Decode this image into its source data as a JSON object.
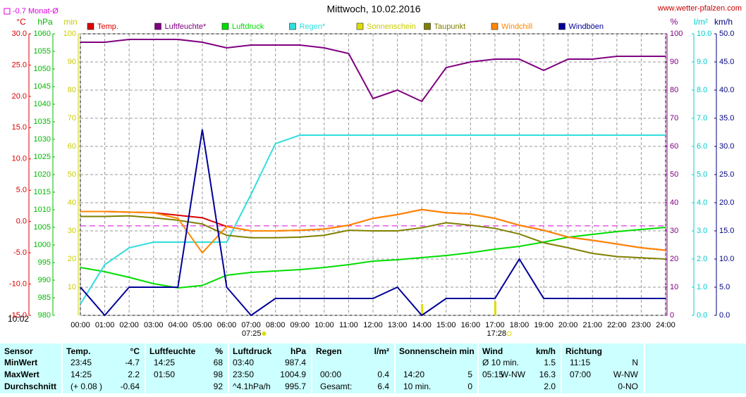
{
  "chart_data": {
    "type": "line",
    "title": "Mittwoch, 10.02.2016",
    "site": "www.wetter-pfalzen.com",
    "month_avg": {
      "label": "-0.7 Monat-Ø",
      "value": -0.7,
      "color": "#dd00dd"
    },
    "time_stamp": "10:02",
    "sunrise": "07:25",
    "sunset": "17:28",
    "grid": true,
    "categories": [
      "00:00",
      "01:00",
      "02:00",
      "03:00",
      "04:00",
      "05:00",
      "06:00",
      "07:00",
      "08:00",
      "09:00",
      "10:00",
      "11:00",
      "12:00",
      "13:00",
      "14:00",
      "15:00",
      "16:00",
      "17:00",
      "18:00",
      "19:00",
      "20:00",
      "21:00",
      "22:00",
      "23:00",
      "24:00"
    ],
    "axes": [
      {
        "label": "°C",
        "color": "#dd0000",
        "side": "left",
        "lim": [
          -15,
          30
        ],
        "ticks": [
          {
            "value": 30,
            "label": "30.0"
          },
          {
            "value": 25,
            "label": "25.0"
          },
          {
            "value": 20,
            "label": "20.0"
          },
          {
            "value": 15,
            "label": "15.0"
          },
          {
            "value": 10,
            "label": "10.0"
          },
          {
            "value": 5,
            "label": "5.0"
          },
          {
            "value": 0,
            "label": "0.0"
          },
          {
            "value": -5,
            "label": "-5.0"
          },
          {
            "value": -10,
            "label": "-10.0"
          },
          {
            "value": -15,
            "label": "-15.0"
          }
        ]
      },
      {
        "label": "hPa",
        "color": "#00bb00",
        "side": "left",
        "lim": [
          980,
          1060
        ],
        "ticks": [
          1060,
          1055,
          1050,
          1045,
          1040,
          1035,
          1030,
          1025,
          1020,
          1015,
          1010,
          1005,
          1000,
          995,
          990,
          985,
          980
        ]
      },
      {
        "label": "min",
        "color": "#cccc00",
        "side": "left",
        "lim": [
          0,
          100
        ],
        "ticks": [
          100,
          90,
          80,
          70,
          60,
          50,
          40,
          30,
          20,
          10
        ]
      },
      {
        "label": "%",
        "color": "#800080",
        "side": "right",
        "lim": [
          0,
          100
        ],
        "ticks": [
          100,
          90,
          80,
          70,
          60,
          50,
          40,
          30,
          20,
          10,
          0
        ]
      },
      {
        "label": "l/m²",
        "color": "#00cccc",
        "side": "right",
        "lim": [
          0,
          10
        ],
        "ticks": [
          {
            "value": 10,
            "label": "10.0"
          },
          {
            "value": 9,
            "label": "9.0"
          },
          {
            "value": 8,
            "label": "8.0"
          },
          {
            "value": 7,
            "label": "7.0"
          },
          {
            "value": 6,
            "label": "6.0"
          },
          {
            "value": 5,
            "label": "5.0"
          },
          {
            "value": 4,
            "label": "4.0"
          },
          {
            "value": 3,
            "label": "3.0"
          },
          {
            "value": 2,
            "label": "2.0"
          },
          {
            "value": 1,
            "label": "1.0"
          },
          {
            "value": 0,
            "label": "0.0"
          }
        ]
      },
      {
        "label": "km/h",
        "color": "#000080",
        "side": "right",
        "lim": [
          0,
          50
        ],
        "ticks": [
          {
            "value": 50,
            "label": "50.0"
          },
          {
            "value": 45,
            "label": "45.0"
          },
          {
            "value": 40,
            "label": "40.0"
          },
          {
            "value": 35,
            "label": "35.0"
          },
          {
            "value": 30,
            "label": "30.0"
          },
          {
            "value": 25,
            "label": "25.0"
          },
          {
            "value": 20,
            "label": "20.0"
          },
          {
            "value": 15,
            "label": "15.0"
          },
          {
            "value": 10,
            "label": "10.0"
          },
          {
            "value": 5,
            "label": "5.0"
          },
          {
            "value": 0,
            "label": "0.0"
          }
        ]
      }
    ],
    "series": [
      {
        "name": "Temp.",
        "color": "#dd0000",
        "axis": 0,
        "kind": "line",
        "values": [
          1.6,
          1.6,
          1.5,
          1.4,
          1.0,
          0.6,
          -0.8,
          -1.5,
          -1.5,
          -1.4,
          -1.2,
          -0.6,
          0.5,
          1.1,
          1.9,
          1.4,
          1.2,
          0.5,
          -0.6,
          -1.4,
          -2.5,
          -3.0,
          -3.6,
          -4.2,
          -4.6
        ]
      },
      {
        "name": "Luftfeuchte*",
        "color": "#800080",
        "axis": 3,
        "kind": "line",
        "values": [
          97,
          97,
          98,
          98,
          98,
          97,
          95,
          96,
          96,
          96,
          95,
          93,
          77,
          80,
          76,
          88,
          90,
          91,
          91,
          87,
          91,
          91,
          92,
          92,
          92
        ]
      },
      {
        "name": "Luftdruck",
        "color": "#00dd00",
        "axis": 1,
        "kind": "line",
        "values": [
          993.6,
          992.4,
          990.8,
          989.0,
          987.8,
          988.5,
          991.4,
          992.2,
          992.6,
          993.0,
          993.6,
          994.4,
          995.4,
          995.8,
          996.4,
          997.0,
          997.8,
          998.8,
          999.6,
          1000.8,
          1002.2,
          1003.0,
          1003.8,
          1004.4,
          1005.0
        ]
      },
      {
        "name": "Regen*",
        "color": "#33dddd",
        "axis": 4,
        "kind": "line",
        "values": [
          0.4,
          1.8,
          2.4,
          2.6,
          2.6,
          2.6,
          2.6,
          4.3,
          6.1,
          6.4,
          6.4,
          6.4,
          6.4,
          6.4,
          6.4,
          6.4,
          6.4,
          6.4,
          6.4,
          6.4,
          6.4,
          6.4,
          6.4,
          6.4,
          6.4
        ]
      },
      {
        "name": "Sonnenschein",
        "color": "#dddd00",
        "axis": 2,
        "kind": "bar",
        "values": [
          0,
          0,
          0,
          0,
          0,
          0,
          0,
          0,
          0,
          0,
          0,
          0,
          0,
          0,
          4,
          0,
          0,
          5,
          0,
          0,
          0,
          0,
          0,
          0,
          0
        ]
      },
      {
        "name": "Taupunkt",
        "color": "#808000",
        "axis": 0,
        "kind": "line",
        "values": [
          0.8,
          0.8,
          0.9,
          0.6,
          0.2,
          -0.4,
          -2.2,
          -2.6,
          -2.6,
          -2.5,
          -2.2,
          -1.4,
          -1.5,
          -1.5,
          -1.0,
          -0.2,
          -0.6,
          -1.1,
          -2.0,
          -3.4,
          -4.2,
          -5.1,
          -5.6,
          -5.8,
          -6.0
        ]
      },
      {
        "name": "Windchill",
        "color": "#ff8800",
        "axis": 0,
        "kind": "line",
        "values": [
          1.6,
          1.6,
          1.5,
          1.4,
          0.5,
          -5.0,
          -0.8,
          -1.5,
          -1.5,
          -1.4,
          -1.2,
          -0.6,
          0.5,
          1.1,
          1.9,
          1.4,
          1.2,
          0.5,
          -0.6,
          -1.4,
          -2.5,
          -3.0,
          -3.6,
          -4.2,
          -4.6
        ]
      },
      {
        "name": "Windböen",
        "color": "#000099",
        "axis": 5,
        "kind": "line",
        "values": [
          5,
          0,
          5,
          5,
          5,
          33,
          5,
          0,
          3,
          3,
          3,
          3,
          3,
          5,
          0,
          3,
          3,
          3,
          10,
          3,
          3,
          3,
          3,
          3,
          3
        ]
      }
    ]
  },
  "stats": {
    "header": [
      "Sensor",
      "Temp.",
      "°C",
      "Luftfeuchte",
      "%",
      "Luftdruck",
      "hPa",
      "Regen",
      "l/m²",
      "Sonnenschein min",
      null,
      "Wind",
      null,
      "km/h",
      "Richtung",
      null
    ],
    "rows": [
      [
        "MinWert",
        "23:45",
        "-4.7",
        "14:25",
        "68",
        "03:40",
        "987.4",
        null,
        null,
        null,
        null,
        "Ø 10 min.",
        null,
        "1.5",
        "11:15",
        "N"
      ],
      [
        "MaxWert",
        "14:25",
        "2.2",
        "01:50",
        "98",
        "23:50",
        "1004.9",
        "00:00",
        "0.4",
        "14:20",
        "5",
        "05:15",
        "W-NW",
        "16.3",
        "07:00",
        "W-NW"
      ],
      [
        "Durchschnitt",
        "(+ 0.08 )",
        "-0.64",
        null,
        "92",
        "^4.1hPa/h",
        "995.7",
        "Gesamt:",
        "6.4",
        "10 min.",
        "0",
        null,
        null,
        "2.0",
        null,
        "0-NO"
      ]
    ]
  }
}
